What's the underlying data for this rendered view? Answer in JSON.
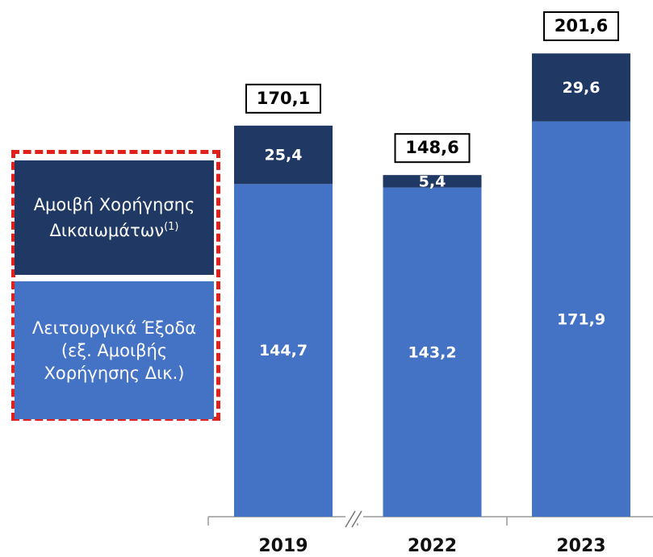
{
  "chart_data": {
    "type": "stacked_bar",
    "categories": [
      "2019",
      "2022",
      "2023"
    ],
    "series": [
      {
        "name": "Λειτουργικά Έξοδα (εξ. Αμοιβής Χορήγησης Δικ.)",
        "color": "#4472c4",
        "values": [
          144.7,
          143.2,
          171.9
        ],
        "value_labels": [
          "144,7",
          "143,2",
          "171,9"
        ]
      },
      {
        "name": "Αμοιβή Χορήγησης Δικαιωμάτων",
        "name_note": "(1)",
        "color": "#1f3864",
        "values": [
          25.4,
          5.4,
          29.6
        ],
        "value_labels": [
          "25,4",
          "5,4",
          "29,6"
        ]
      }
    ],
    "totals": [
      170.1,
      148.6,
      201.6
    ],
    "total_labels": [
      "170,1",
      "148,6",
      "201,6"
    ],
    "legend": "left"
  }
}
